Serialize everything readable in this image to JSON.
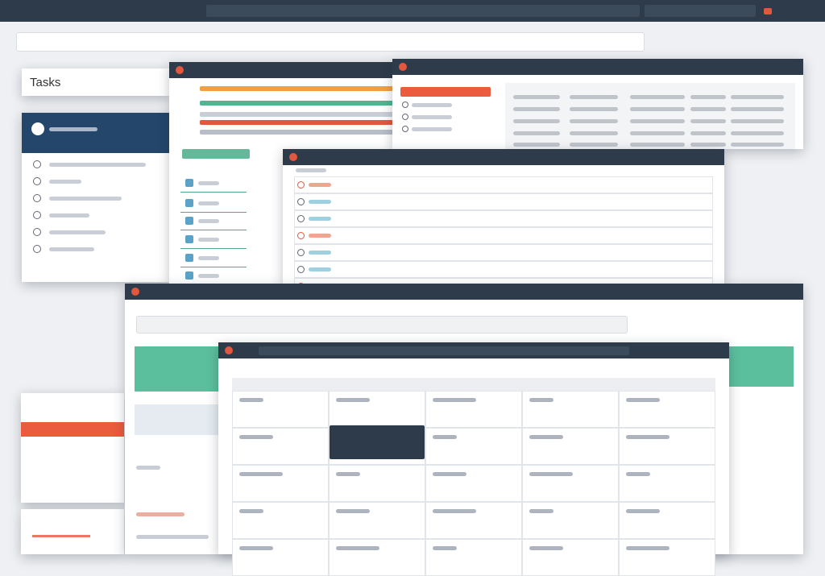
{
  "app": {
    "title": "Tasks"
  }
}
